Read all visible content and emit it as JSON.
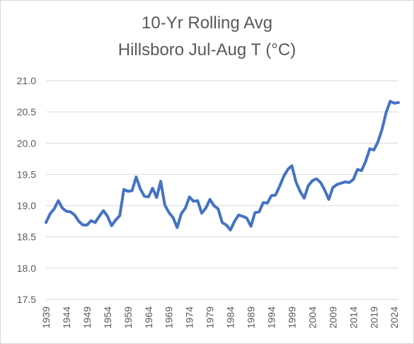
{
  "chart_data": {
    "type": "line",
    "title_lines": [
      "10-Yr Rolling Avg",
      "Hillsboro Jul-Aug T (°C)"
    ],
    "xlabel": "",
    "ylabel": "",
    "ylim": [
      17.5,
      21.0
    ],
    "yticks": [
      "17.5",
      "18.0",
      "18.5",
      "19.0",
      "19.5",
      "20.0",
      "20.5",
      "21.0"
    ],
    "xticks": [
      "1939",
      "1944",
      "1949",
      "1954",
      "1959",
      "1964",
      "1969",
      "1974",
      "1979",
      "1984",
      "1989",
      "1994",
      "1999",
      "2004",
      "2009",
      "2014",
      "2019",
      "2024"
    ],
    "grid": "horizontal",
    "legend": "none",
    "line_color": "#4472c4",
    "series": [
      {
        "x": [
          1939,
          1940,
          1941,
          1942,
          1943,
          1944,
          1945,
          1946,
          1947,
          1948,
          1949,
          1950,
          1951,
          1952,
          1953,
          1954,
          1955,
          1956,
          1957,
          1958,
          1959,
          1960,
          1961,
          1962,
          1963,
          1964,
          1965,
          1966,
          1967,
          1968,
          1969,
          1970,
          1971,
          1972,
          1973,
          1974,
          1975,
          1976,
          1977,
          1978,
          1979,
          1980,
          1981,
          1982,
          1983,
          1984,
          1985,
          1986,
          1987,
          1988,
          1989,
          1990,
          1991,
          1992,
          1993,
          1994,
          1995,
          1996,
          1997,
          1998,
          1999,
          2000,
          2001,
          2002,
          2003,
          2004,
          2005,
          2006,
          2007,
          2008,
          2009,
          2010,
          2011,
          2012,
          2013,
          2014,
          2015,
          2016,
          2017,
          2018,
          2019,
          2020,
          2021,
          2022,
          2023,
          2024,
          2025
        ],
        "values": [
          18.73,
          18.87,
          18.95,
          19.08,
          18.96,
          18.91,
          18.9,
          18.85,
          18.75,
          18.69,
          18.69,
          18.76,
          18.73,
          18.83,
          18.92,
          18.83,
          18.68,
          18.77,
          18.84,
          19.26,
          19.23,
          19.24,
          19.46,
          19.27,
          19.15,
          19.14,
          19.28,
          19.13,
          19.39,
          19.01,
          18.89,
          18.81,
          18.65,
          18.87,
          18.96,
          19.14,
          19.07,
          19.08,
          18.88,
          18.96,
          19.1,
          19.0,
          18.95,
          18.73,
          18.69,
          18.61,
          18.75,
          18.85,
          18.83,
          18.8,
          18.67,
          18.89,
          18.9,
          19.05,
          19.04,
          19.16,
          19.17,
          19.31,
          19.47,
          19.58,
          19.64,
          19.38,
          19.23,
          19.12,
          19.32,
          19.4,
          19.43,
          19.37,
          19.25,
          19.1,
          19.29,
          19.34,
          19.36,
          19.38,
          19.37,
          19.42,
          19.58,
          19.56,
          19.71,
          19.91,
          19.89,
          20.02,
          20.22,
          20.49,
          20.67,
          20.64,
          20.65
        ]
      }
    ]
  }
}
